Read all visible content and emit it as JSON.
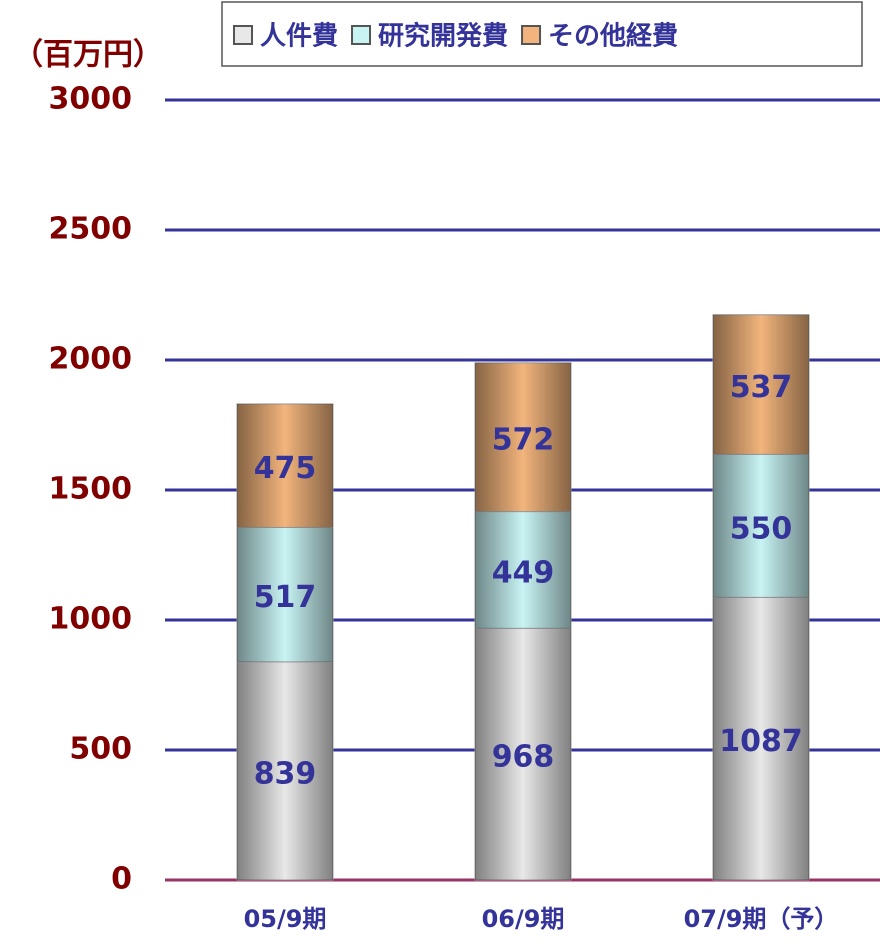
{
  "chart_data": {
    "type": "stacked_bar",
    "y_axis_label": "（百万円）",
    "categories": [
      "05/9期",
      "06/9期",
      "07/9期（予）"
    ],
    "series": [
      {
        "name": "人件費",
        "color": "#e8e8e8",
        "values": [
          839,
          968,
          1087
        ]
      },
      {
        "name": "研究開発費",
        "color": "#c8f4f4",
        "values": [
          517,
          449,
          550
        ]
      },
      {
        "name": "その他経費",
        "color": "#f2b47c",
        "values": [
          475,
          572,
          537
        ]
      }
    ],
    "ylim": [
      0,
      3000
    ],
    "yticks": [
      0,
      500,
      1000,
      1500,
      2000,
      2500,
      3000
    ],
    "grid": true,
    "grid_color": "#333399",
    "zero_line_color": "#993366",
    "tick_label_color": "#800000",
    "value_label_color": "#333399",
    "category_label_color": "#333399",
    "legend": "top"
  }
}
